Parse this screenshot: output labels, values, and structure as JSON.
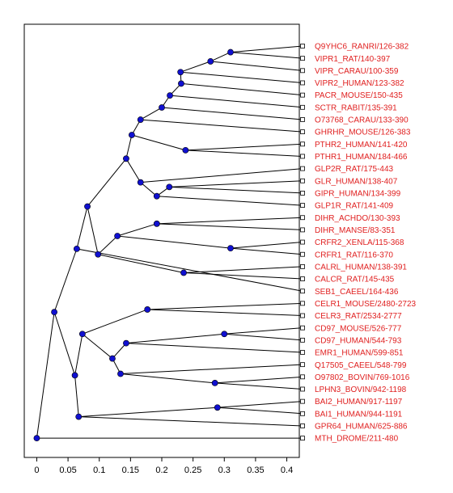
{
  "colors": {
    "node_fill": "#1010d0",
    "leaf_label": "#e02020",
    "branch": "#000000",
    "background": "#ffffff"
  },
  "x_axis": {
    "min": -0.02,
    "max": 0.42,
    "ticks": [
      {
        "value": 0,
        "label": "0"
      },
      {
        "value": 0.05,
        "label": "0.05"
      },
      {
        "value": 0.1,
        "label": "0.1"
      },
      {
        "value": 0.15,
        "label": "0.15"
      },
      {
        "value": 0.2,
        "label": "0.2"
      },
      {
        "value": 0.25,
        "label": "0.25"
      },
      {
        "value": 0.3,
        "label": "0.3"
      },
      {
        "value": 0.35,
        "label": "0.35"
      },
      {
        "value": 0.4,
        "label": "0.4"
      }
    ]
  },
  "leaves": [
    "Q9YHC6_RANRI/126-382",
    "VIPR1_RAT/140-397",
    "VIPR_CARAU/100-359",
    "VIPR2_HUMAN/123-382",
    "PACR_MOUSE/150-435",
    "SCTR_RABIT/135-391",
    "O73768_CARAU/133-390",
    "GHRHR_MOUSE/126-383",
    "PTHR2_HUMAN/141-420",
    "PTHR1_HUMAN/184-466",
    "GLP2R_RAT/175-443",
    "GLR_HUMAN/138-407",
    "GIPR_HUMAN/134-399",
    "GLP1R_RAT/141-409",
    "DIHR_ACHDO/130-393",
    "DIHR_MANSE/83-351",
    "CRFR2_XENLA/115-368",
    "CRFR1_RAT/116-370",
    "CALRL_HUMAN/138-391",
    "CALCR_RAT/145-435",
    "SEB1_CAEEL/164-436",
    "CELR1_MOUSE/2480-2723",
    "CELR3_RAT/2534-2777",
    "CD97_MOUSE/526-777",
    "CD97_HUMAN/544-793",
    "EMR1_HUMAN/599-851",
    "Q17505_CAEEL/548-799",
    "O97802_BOVIN/769-1016",
    "LPHN3_BOVIN/942-1198",
    "BAI2_HUMAN/917-1197",
    "BAI1_HUMAN/944-1191",
    "GPR64_HUMAN/625-886",
    "MTH_DROME/211-480"
  ],
  "tree": {
    "d": 0,
    "c": [
      {
        "d": 0.028,
        "c": [
          {
            "d": 0.064,
            "c": [
              {
                "d": 0.081,
                "c": [
                  {
                    "d": 0.143,
                    "c": [
                      {
                        "d": 0.152,
                        "c": [
                          {
                            "d": 0.166,
                            "c": [
                              {
                                "d": 0.2,
                                "c": [
                                  {
                                    "d": 0.213,
                                    "c": [
                                      {
                                        "d": 0.231,
                                        "c": [
                                          {
                                            "d": 0.23,
                                            "c": [
                                              {
                                                "d": 0.278,
                                                "c": [
                                                  {
                                                    "d": 0.31,
                                                    "c": [
                                                      {
                                                        "leaf": 0
                                                      },
                                                      {
                                                        "leaf": 1
                                                      }
                                                    ]
                                                  },
                                                  {
                                                    "leaf": 2
                                                  }
                                                ]
                                              },
                                              {
                                                "leaf": 3
                                              }
                                            ]
                                          },
                                          {
                                            "leaf": 4
                                          }
                                        ]
                                      },
                                      {
                                        "leaf": 5
                                      }
                                    ]
                                  },
                                  {
                                    "leaf": 6
                                  }
                                ]
                              },
                              {
                                "leaf": 7
                              }
                            ]
                          },
                          {
                            "d": 0.238,
                            "c": [
                              {
                                "leaf": 8
                              },
                              {
                                "leaf": 9
                              }
                            ]
                          }
                        ]
                      },
                      {
                        "d": 0.166,
                        "c": [
                          {
                            "leaf": 10
                          },
                          {
                            "d": 0.192,
                            "c": [
                              {
                                "d": 0.212,
                                "c": [
                                  {
                                    "leaf": 11
                                  },
                                  {
                                    "leaf": 12
                                  }
                                ]
                              },
                              {
                                "leaf": 13
                              }
                            ]
                          }
                        ]
                      }
                    ]
                  },
                  {
                    "d": 0.098,
                    "c": [
                      {
                        "d": 0.129,
                        "c": [
                          {
                            "d": 0.192,
                            "c": [
                              {
                                "leaf": 14
                              },
                              {
                                "leaf": 15
                              }
                            ]
                          },
                          {
                            "d": 0.31,
                            "c": [
                              {
                                "leaf": 16
                              },
                              {
                                "leaf": 17
                              }
                            ]
                          }
                        ]
                      },
                      {
                        "d": 0.235,
                        "c": [
                          {
                            "leaf": 18
                          },
                          {
                            "leaf": 19
                          }
                        ]
                      }
                    ]
                  }
                ]
              },
              {
                "leaf": 20
              }
            ]
          },
          {
            "d": 0.061,
            "c": [
              {
                "d": 0.073,
                "c": [
                  {
                    "d": 0.177,
                    "c": [
                      {
                        "leaf": 21
                      },
                      {
                        "leaf": 22
                      }
                    ]
                  },
                  {
                    "d": 0.121,
                    "c": [
                      {
                        "d": 0.143,
                        "c": [
                          {
                            "d": 0.3,
                            "c": [
                              {
                                "leaf": 23
                              },
                              {
                                "leaf": 24
                              }
                            ]
                          },
                          {
                            "leaf": 25
                          }
                        ]
                      },
                      {
                        "d": 0.134,
                        "c": [
                          {
                            "leaf": 26
                          },
                          {
                            "d": 0.285,
                            "c": [
                              {
                                "leaf": 27
                              },
                              {
                                "leaf": 28
                              }
                            ]
                          }
                        ]
                      }
                    ]
                  }
                ]
              },
              {
                "d": 0.067,
                "c": [
                  {
                    "d": 0.289,
                    "c": [
                      {
                        "leaf": 29
                      },
                      {
                        "leaf": 30
                      }
                    ]
                  },
                  {
                    "leaf": 31
                  }
                ]
              }
            ]
          }
        ]
      },
      {
        "leaf": 32
      }
    ]
  }
}
